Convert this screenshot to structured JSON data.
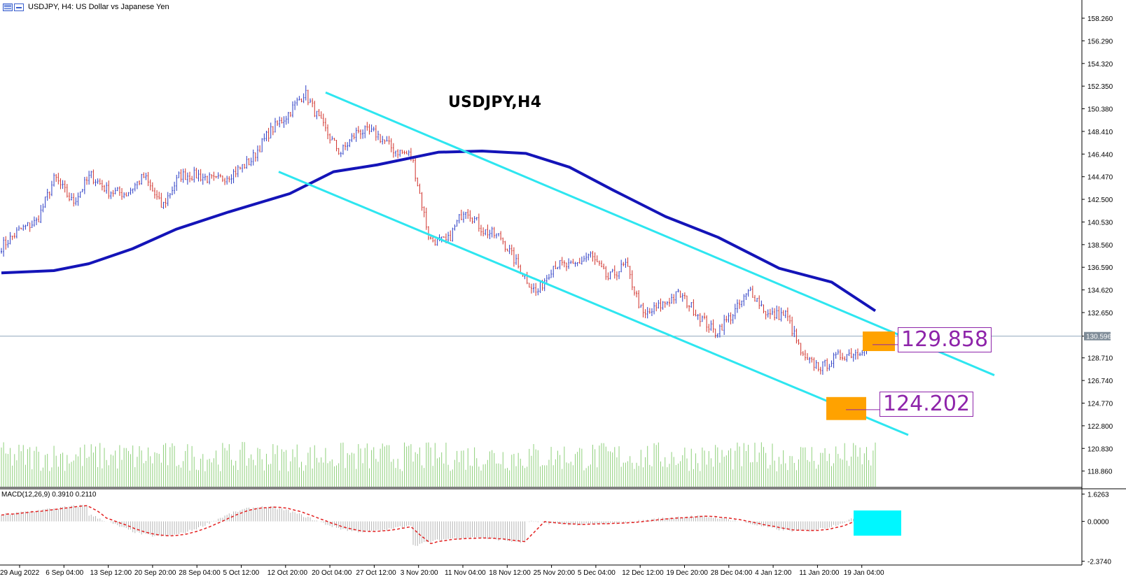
{
  "window": {
    "title": "USDJPY, H4:  US Dollar vs Japanese Yen",
    "chart_title": "USDJPY,H4",
    "macd_label": "MACD(12,26,9) 0.3910 0.2110"
  },
  "annotations": {
    "target_upper": "129.858",
    "target_lower": "124.202"
  },
  "colors": {
    "bull": "#2b3cc4",
    "bear": "#d0302a",
    "ma": "#1414b8",
    "channel": "#2ee6f0",
    "volume": "#8fd07b",
    "highlight": "#ffa200",
    "macd_box": "#00f7ff",
    "price_line": "#8fa6bb",
    "signal": "#e32020",
    "histogram": "#b5b5b5"
  },
  "chart_data": {
    "type": "candlestick",
    "symbol": "USDJPY",
    "timeframe": "H4",
    "price_axis": {
      "ticks": [
        "158.260",
        "156.290",
        "154.320",
        "152.350",
        "150.380",
        "148.410",
        "146.440",
        "144.470",
        "142.500",
        "140.530",
        "138.560",
        "136.590",
        "134.620",
        "132.650",
        "130.596",
        "128.710",
        "126.740",
        "124.770",
        "122.800",
        "120.830",
        "118.860"
      ],
      "current_price": "130.596",
      "range": [
        117.5,
        159.6
      ]
    },
    "time_axis": {
      "ticks": [
        "29 Aug 2022",
        "6 Sep 04:00",
        "13 Sep 12:00",
        "20 Sep 20:00",
        "28 Sep 04:00",
        "5 Oct 12:00",
        "12 Oct 20:00",
        "20 Oct 04:00",
        "27 Oct 12:00",
        "3 Nov 20:00",
        "11 Nov 04:00",
        "18 Nov 12:00",
        "25 Nov 20:00",
        "5 Dec 04:00",
        "12 Dec 12:00",
        "19 Dec 20:00",
        "28 Dec 04:00",
        "4 Jan 12:00",
        "11 Jan 20:00",
        "19 Jan 04:00"
      ]
    },
    "price_path": [
      [
        "29 Aug 2022",
        138.4
      ],
      [
        "",
        139.8
      ],
      [
        "",
        140.6
      ],
      [
        "6 Sep 04:00",
        144.4
      ],
      [
        "",
        142.2
      ],
      [
        "13 Sep 12:00",
        144.6
      ],
      [
        "",
        143.2
      ],
      [
        "",
        143.0
      ],
      [
        "20 Sep 20:00",
        144.5
      ],
      [
        "",
        141.8
      ],
      [
        "",
        144.6
      ],
      [
        "28 Sep 04:00",
        144.6
      ],
      [
        "",
        144.1
      ],
      [
        "5 Oct 12:00",
        144.8
      ],
      [
        "",
        145.9
      ],
      [
        "12 Oct 20:00",
        148.3
      ],
      [
        "",
        149.8
      ],
      [
        "20 Oct 04:00",
        151.8
      ],
      [
        "",
        148.9
      ],
      [
        "",
        146.5
      ],
      [
        "27 Oct 12:00",
        148.5
      ],
      [
        "",
        148.2
      ],
      [
        "3 Nov 20:00",
        146.8
      ],
      [
        "",
        146.3
      ],
      [
        "11 Nov 04:00",
        139.0
      ],
      [
        "",
        138.8
      ],
      [
        "18 Nov 12:00",
        141.8
      ],
      [
        "",
        139.8
      ],
      [
        "25 Nov 20:00",
        139.2
      ],
      [
        "",
        136.6
      ],
      [
        "5 Dec 04:00",
        134.3
      ],
      [
        "",
        136.9
      ],
      [
        "",
        136.6
      ],
      [
        "12 Dec 12:00",
        137.7
      ],
      [
        "",
        135.6
      ],
      [
        "",
        136.8
      ],
      [
        "19 Dec 20:00",
        132.3
      ],
      [
        "",
        133.3
      ],
      [
        "",
        134.3
      ],
      [
        "28 Dec 04:00",
        132.6
      ],
      [
        "",
        130.9
      ],
      [
        "4 Jan 12:00",
        132.5
      ],
      [
        "",
        134.6
      ],
      [
        "",
        132.4
      ],
      [
        "",
        132.5
      ],
      [
        "11 Jan 20:00",
        128.5
      ],
      [
        "",
        127.9
      ],
      [
        "",
        128.9
      ],
      [
        "19 Jan 04:00",
        129.2
      ],
      [
        "",
        130.6
      ]
    ],
    "moving_average": [
      [
        0,
        136.1
      ],
      [
        0.06,
        136.3
      ],
      [
        0.1,
        136.9
      ],
      [
        0.15,
        138.2
      ],
      [
        0.2,
        139.9
      ],
      [
        0.26,
        141.4
      ],
      [
        0.33,
        143.0
      ],
      [
        0.38,
        144.9
      ],
      [
        0.43,
        145.5
      ],
      [
        0.5,
        146.6
      ],
      [
        0.55,
        146.7
      ],
      [
        0.6,
        146.5
      ],
      [
        0.65,
        145.3
      ],
      [
        0.7,
        143.3
      ],
      [
        0.76,
        141.0
      ],
      [
        0.82,
        139.2
      ],
      [
        0.89,
        136.5
      ],
      [
        0.95,
        135.3
      ],
      [
        1.0,
        132.8
      ]
    ],
    "channel": {
      "upper": [
        [
          "20 Oct 04:00",
          151.8
        ],
        [
          "right",
          127.2
        ]
      ],
      "lower": [
        [
          "13 Oct",
          144.9
        ],
        [
          "right",
          122.0
        ]
      ]
    },
    "macd": {
      "params": "MACD(12,26,9)",
      "values": [
        0.391,
        0.211
      ],
      "axis_ticks": [
        "1.6263",
        "0.0000",
        "-2.3740"
      ],
      "range": [
        -2.6,
        1.9
      ]
    }
  }
}
